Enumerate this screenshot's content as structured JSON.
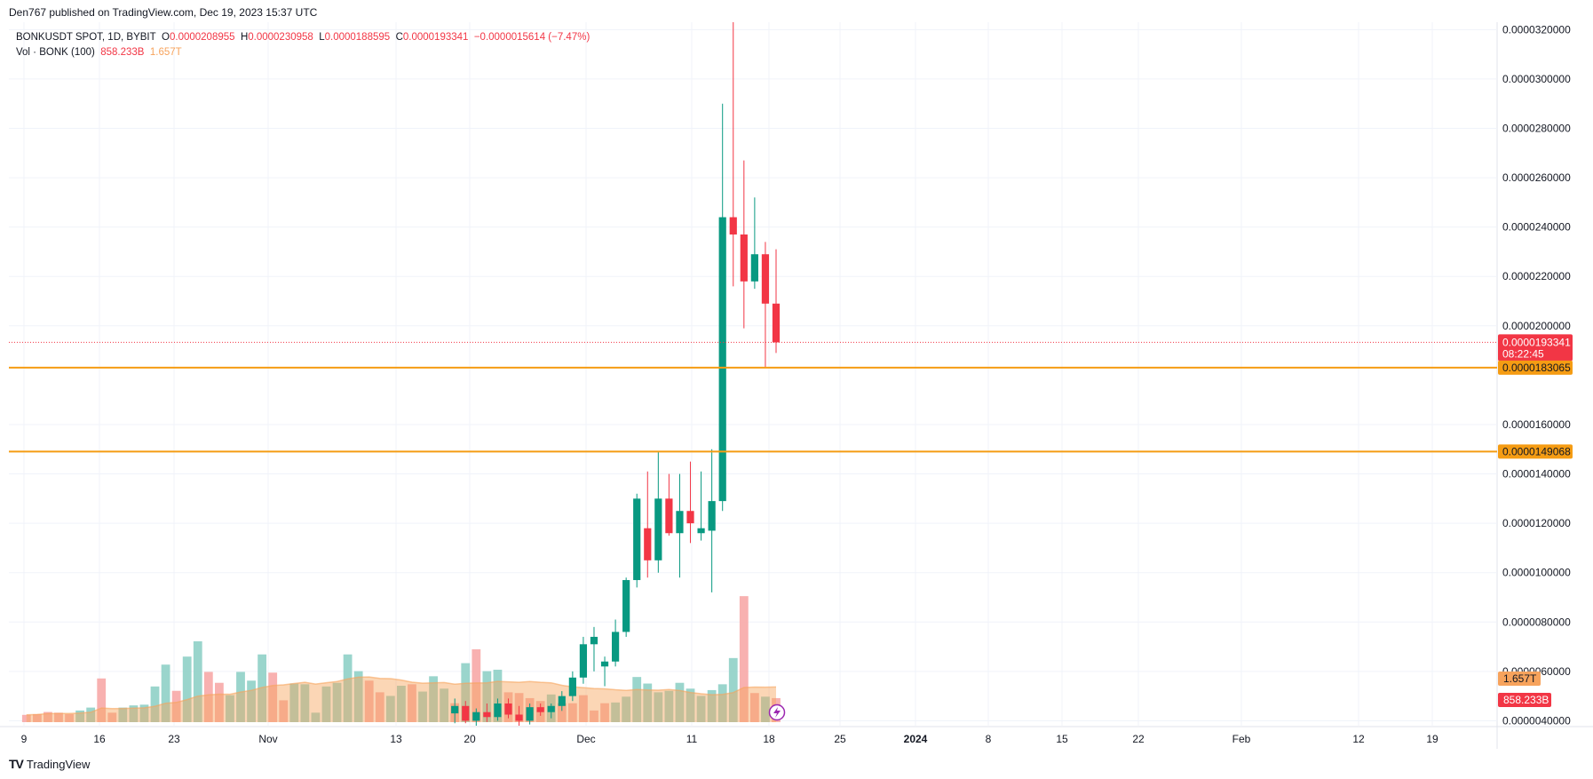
{
  "header": {
    "published": "Den767 published on TradingView.com, Dec 19, 2023 15:37 UTC"
  },
  "legend": {
    "symbol": "BONKUSDT SPOT, 1D, BYBIT",
    "o_label": "O",
    "o_value": "0.0000208955",
    "h_label": "H",
    "h_value": "0.0000230958",
    "l_label": "L",
    "l_value": "0.0000188595",
    "c_label": "C",
    "c_value": "0.0000193341",
    "change": "−0.0000015614 (−7.47%)",
    "vol_label": "Vol · BONK (100)",
    "vol_value": "858.233B",
    "vol_ma": "1.657T"
  },
  "footer": {
    "brand": "TradingView"
  },
  "colors": {
    "up": "#089981",
    "down": "#f23645",
    "vol_up": "#8fd0c7",
    "vol_down": "#f7a9a7",
    "vol_ma": "#f7a35c",
    "hline": "#f59c13",
    "grid": "#f0f3fa",
    "axis_text": "#131722"
  },
  "chart_data": {
    "type": "candlestick",
    "symbol": "BONKUSDT SPOT",
    "interval": "1D",
    "exchange": "BYBIT",
    "ylim": [
      3.8e-06,
      3.23e-05
    ],
    "y_ticks": [
      "0.0000040000",
      "0.0000060000",
      "0.0000080000",
      "0.0000100000",
      "0.0000120000",
      "0.0000140000",
      "0.0000160000",
      "0.0000200000",
      "0.0000220000",
      "0.0000240000",
      "0.0000260000",
      "0.0000280000",
      "0.0000300000",
      "0.0000320000"
    ],
    "x_ticks": [
      "9",
      "16",
      "23",
      "Nov",
      "13",
      "20",
      "Dec",
      "11",
      "18",
      "25",
      "2024",
      "8",
      "15",
      "22",
      "Feb",
      "12",
      "19"
    ],
    "last_price": {
      "value": "0.0000193341",
      "countdown": "08:22:45"
    },
    "horizontal_lines": [
      {
        "label": "0.0000183065",
        "value": 1.83065e-05
      },
      {
        "label": "0.0000149068",
        "value": 1.49068e-05
      }
    ],
    "volume_labels": {
      "ma": "1.657T",
      "last": "858.233B"
    },
    "candles": [
      {
        "o": 4.3,
        "h": 4.9,
        "l": 3.9,
        "c": 4.6
      },
      {
        "o": 4.6,
        "h": 4.8,
        "l": 3.9,
        "c": 4.0
      },
      {
        "o": 4.0,
        "h": 4.5,
        "l": 3.8,
        "c": 4.35
      },
      {
        "o": 4.35,
        "h": 4.7,
        "l": 3.95,
        "c": 4.15
      },
      {
        "o": 4.15,
        "h": 4.9,
        "l": 4.0,
        "c": 4.7
      },
      {
        "o": 4.7,
        "h": 4.9,
        "l": 4.1,
        "c": 4.25
      },
      {
        "o": 4.25,
        "h": 4.6,
        "l": 3.8,
        "c": 4.0
      },
      {
        "o": 4.0,
        "h": 4.7,
        "l": 3.85,
        "c": 4.55
      },
      {
        "o": 4.55,
        "h": 4.7,
        "l": 4.2,
        "c": 4.35
      },
      {
        "o": 4.35,
        "h": 4.7,
        "l": 4.1,
        "c": 4.6
      },
      {
        "o": 4.6,
        "h": 5.2,
        "l": 4.4,
        "c": 5.0
      },
      {
        "o": 5.0,
        "h": 6.0,
        "l": 4.8,
        "c": 5.75
      },
      {
        "o": 5.75,
        "h": 7.4,
        "l": 5.5,
        "c": 7.1
      },
      {
        "o": 7.1,
        "h": 7.8,
        "l": 6.0,
        "c": 7.4
      },
      {
        "o": 6.2,
        "h": 6.6,
        "l": 5.4,
        "c": 6.4
      },
      {
        "o": 6.4,
        "h": 8.1,
        "l": 6.2,
        "c": 7.6
      },
      {
        "o": 7.6,
        "h": 9.8,
        "l": 7.4,
        "c": 9.7
      },
      {
        "o": 9.7,
        "h": 13.2,
        "l": 9.4,
        "c": 13.0
      },
      {
        "o": 11.8,
        "h": 14.1,
        "l": 9.8,
        "c": 10.5
      },
      {
        "o": 10.5,
        "h": 14.9,
        "l": 10.0,
        "c": 13.0
      },
      {
        "o": 13.0,
        "h": 14.0,
        "l": 11.5,
        "c": 11.6
      },
      {
        "o": 11.6,
        "h": 14.0,
        "l": 9.8,
        "c": 12.5
      },
      {
        "o": 12.5,
        "h": 14.5,
        "l": 11.2,
        "c": 12.0
      },
      {
        "o": 11.6,
        "h": 14.1,
        "l": 11.3,
        "c": 11.8
      },
      {
        "o": 11.7,
        "h": 15.0,
        "l": 9.2,
        "c": 12.9
      },
      {
        "o": 12.9,
        "h": 29.0,
        "l": 12.5,
        "c": 24.4
      },
      {
        "o": 24.4,
        "h": 32.3,
        "l": 21.6,
        "c": 23.7
      },
      {
        "o": 23.7,
        "h": 26.7,
        "l": 19.9,
        "c": 21.8
      },
      {
        "o": 21.8,
        "h": 25.2,
        "l": 21.5,
        "c": 22.9
      },
      {
        "o": 22.9,
        "h": 23.4,
        "l": 18.3,
        "c": 20.9
      },
      {
        "o": 20.9,
        "h": 23.1,
        "l": 18.9,
        "c": 19.33
      }
    ],
    "volume_bars": [
      {
        "v": 1.0,
        "up": false
      },
      {
        "v": 1.1,
        "up": false
      },
      {
        "v": 1.4,
        "up": false
      },
      {
        "v": 1.3,
        "up": false
      },
      {
        "v": 1.1,
        "up": false
      },
      {
        "v": 1.6,
        "up": true
      },
      {
        "v": 2.0,
        "up": true
      },
      {
        "v": 6.0,
        "up": false
      },
      {
        "v": 1.3,
        "up": false
      },
      {
        "v": 2.0,
        "up": true
      },
      {
        "v": 2.3,
        "up": true
      },
      {
        "v": 2.4,
        "up": true
      },
      {
        "v": 4.9,
        "up": true
      },
      {
        "v": 7.9,
        "up": true
      },
      {
        "v": 4.3,
        "up": false
      },
      {
        "v": 9.0,
        "up": true
      },
      {
        "v": 11.1,
        "up": true
      },
      {
        "v": 6.9,
        "up": false
      },
      {
        "v": 5.4,
        "up": false
      },
      {
        "v": 3.7,
        "up": true
      },
      {
        "v": 6.9,
        "up": true
      },
      {
        "v": 5.7,
        "up": true
      },
      {
        "v": 9.3,
        "up": true
      },
      {
        "v": 6.8,
        "up": false
      },
      {
        "v": 3.0,
        "up": false
      },
      {
        "v": 5.3,
        "up": true
      },
      {
        "v": 5.2,
        "up": true
      },
      {
        "v": 1.3,
        "up": true
      },
      {
        "v": 4.9,
        "up": true
      },
      {
        "v": 5.4,
        "up": true
      },
      {
        "v": 9.3,
        "up": true
      },
      {
        "v": 7.0,
        "up": true
      },
      {
        "v": 5.7,
        "up": false
      },
      {
        "v": 4.1,
        "up": false
      },
      {
        "v": 3.6,
        "up": true
      },
      {
        "v": 5.0,
        "up": true
      },
      {
        "v": 5.2,
        "up": false
      },
      {
        "v": 4.2,
        "up": true
      },
      {
        "v": 6.3,
        "up": true
      },
      {
        "v": 4.6,
        "up": true
      },
      {
        "v": 2.6,
        "up": false
      },
      {
        "v": 8.1,
        "up": true
      },
      {
        "v": 10.0,
        "up": false
      },
      {
        "v": 7.0,
        "up": true
      },
      {
        "v": 7.2,
        "up": true
      },
      {
        "v": 4.1,
        "up": false
      },
      {
        "v": 4.0,
        "up": false
      },
      {
        "v": 3.3,
        "up": false
      },
      {
        "v": 2.9,
        "up": false
      },
      {
        "v": 3.8,
        "up": true
      },
      {
        "v": 2.6,
        "up": false
      },
      {
        "v": 2.6,
        "up": false
      },
      {
        "v": 3.7,
        "up": false
      },
      {
        "v": 1.6,
        "up": false
      },
      {
        "v": 2.6,
        "up": false
      },
      {
        "v": 2.7,
        "up": true
      },
      {
        "v": 3.5,
        "up": true
      },
      {
        "v": 6.2,
        "up": true
      },
      {
        "v": 5.3,
        "up": true
      },
      {
        "v": 4.1,
        "up": true
      },
      {
        "v": 4.3,
        "up": true
      },
      {
        "v": 5.4,
        "up": true
      },
      {
        "v": 4.6,
        "up": true
      },
      {
        "v": 3.6,
        "up": true
      },
      {
        "v": 4.4,
        "up": true
      },
      {
        "v": 5.2,
        "up": true
      },
      {
        "v": 8.8,
        "up": true
      },
      {
        "v": 17.3,
        "up": false
      },
      {
        "v": 4.0,
        "up": false
      },
      {
        "v": 3.5,
        "up": true
      },
      {
        "v": 3.3,
        "up": false
      }
    ]
  }
}
